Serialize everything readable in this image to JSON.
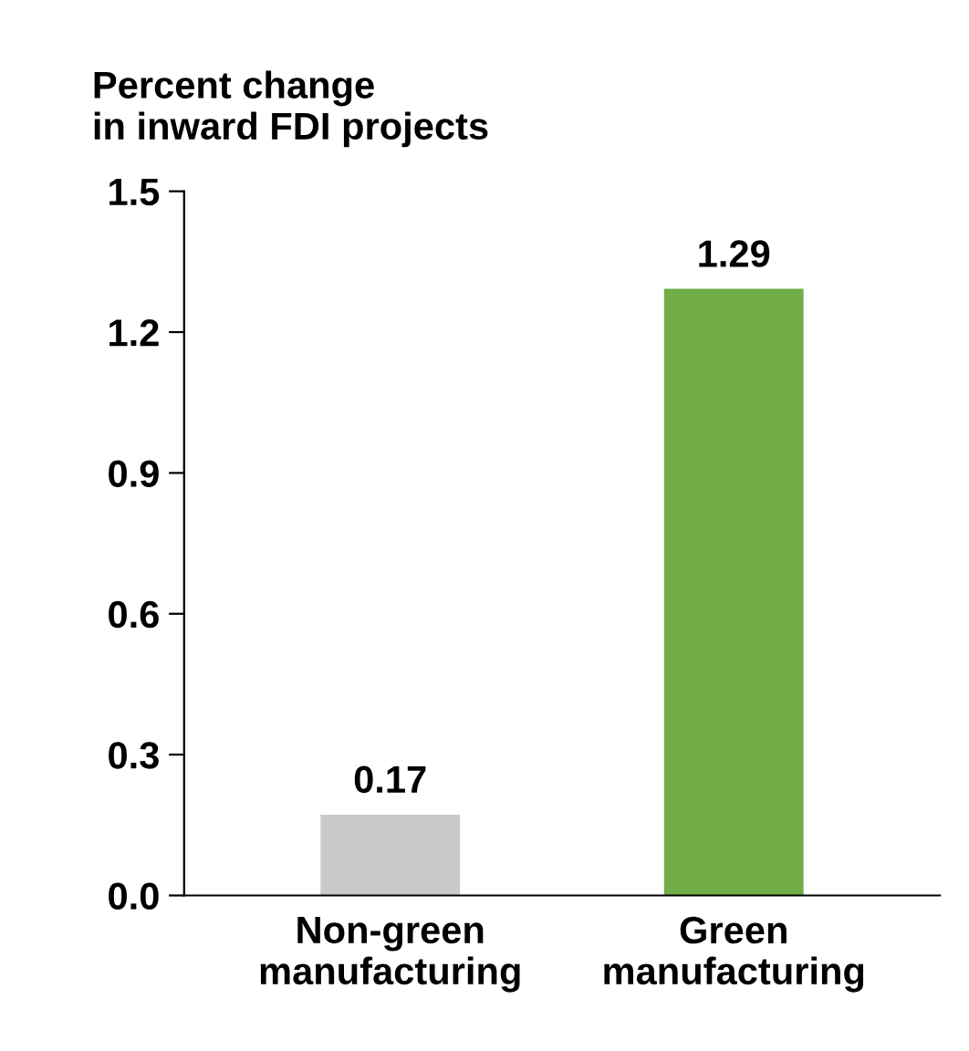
{
  "chart_data": {
    "type": "bar",
    "title": "Percent change\nin inward FDI projects",
    "categories": [
      "Non-green\nmanufacturing",
      "Green\nmanufacturing"
    ],
    "values": [
      0.17,
      1.29
    ],
    "colors": [
      "#c9c9c9",
      "#70ad47"
    ],
    "ylim": [
      0,
      1.5
    ],
    "yticks": [
      {
        "value": 0,
        "label": "0.0"
      },
      0.3,
      0.6,
      0.9,
      1.2,
      1.5
    ],
    "data_labels": true,
    "grid": false,
    "legend": false
  }
}
